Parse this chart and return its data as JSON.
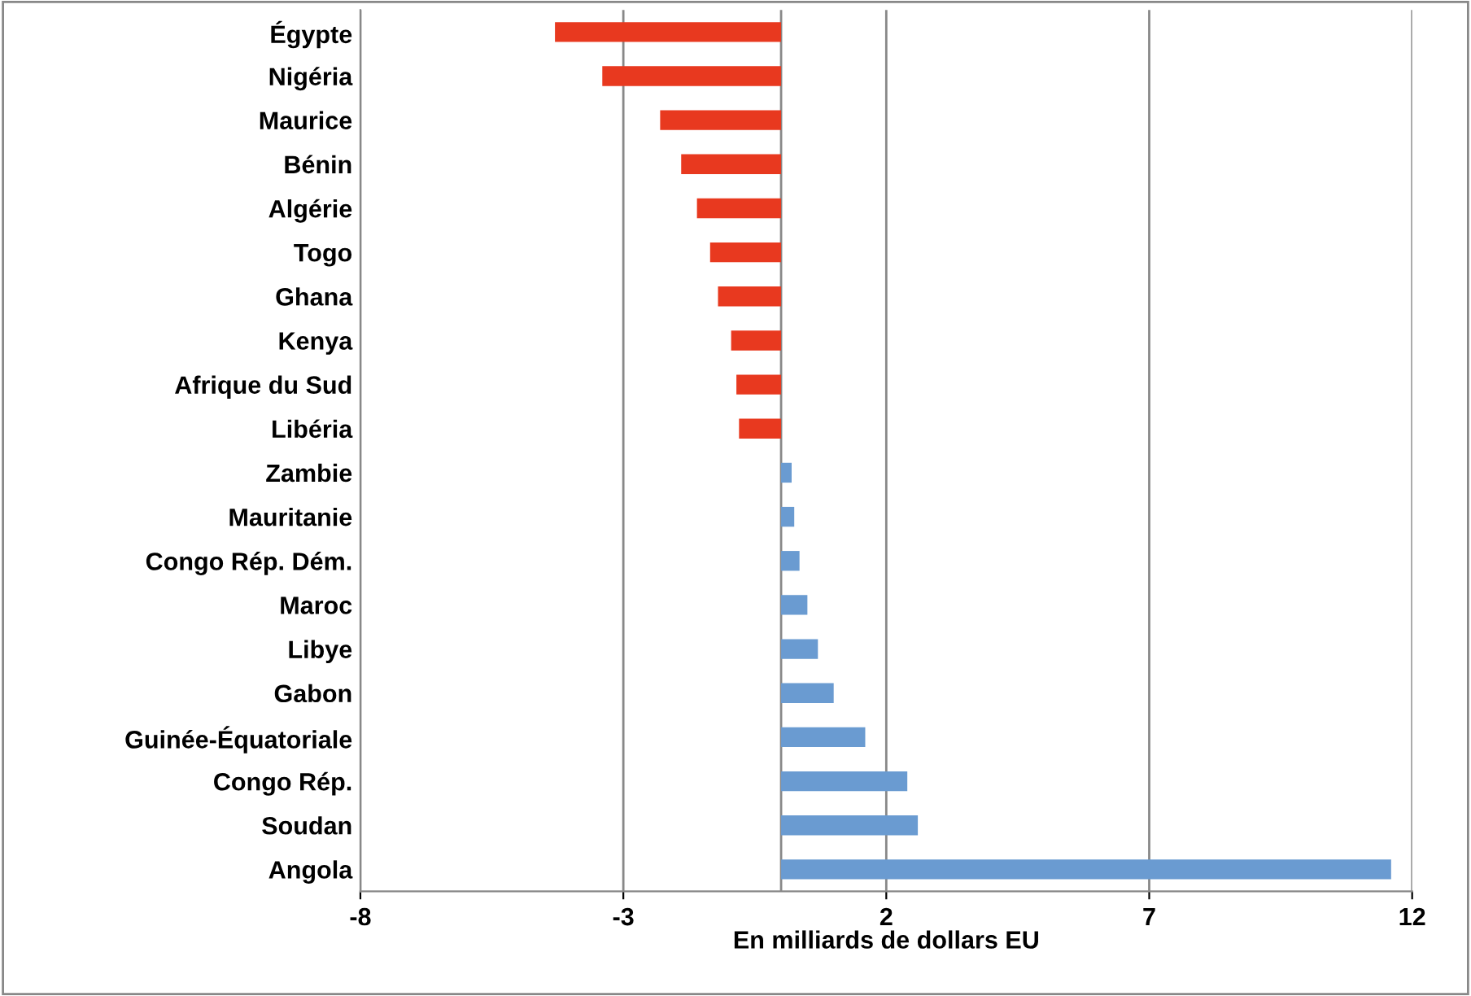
{
  "chart_data": {
    "type": "bar",
    "orientation": "horizontal",
    "xlabel": "En milliards de dollars EU",
    "categories": [
      "Égypte",
      "Nigéria",
      "Maurice",
      "Bénin",
      "Algérie",
      "Togo",
      "Ghana",
      "Kenya",
      "Afrique du Sud",
      "Libéria",
      "Zambie",
      "Mauritanie",
      "Congo Rép. Dém.",
      "Maroc",
      "Libye",
      "Gabon",
      "Guinée-Équatoriale",
      "Congo Rép.",
      "Soudan",
      "Angola"
    ],
    "values": [
      -4.3,
      -3.4,
      -2.3,
      -1.9,
      -1.6,
      -1.35,
      -1.2,
      -0.95,
      -0.85,
      -0.8,
      0.2,
      0.25,
      0.35,
      0.5,
      0.7,
      1.0,
      1.6,
      2.4,
      2.6,
      11.6
    ],
    "colors": [
      "#e8391f",
      "#e8391f",
      "#e8391f",
      "#e8391f",
      "#e8391f",
      "#e8391f",
      "#e8391f",
      "#e8391f",
      "#e8391f",
      "#e8391f",
      "#6a9bd1",
      "#6a9bd1",
      "#6a9bd1",
      "#6a9bd1",
      "#6a9bd1",
      "#6a9bd1",
      "#6a9bd1",
      "#6a9bd1",
      "#6a9bd1",
      "#6a9bd1"
    ],
    "xlim": [
      -8,
      12
    ],
    "xticks": [
      -8,
      -3,
      2,
      7,
      12
    ],
    "grid": "x",
    "ref_lines": [
      {
        "axis": "x",
        "value": 0,
        "color": "#888888"
      }
    ]
  }
}
